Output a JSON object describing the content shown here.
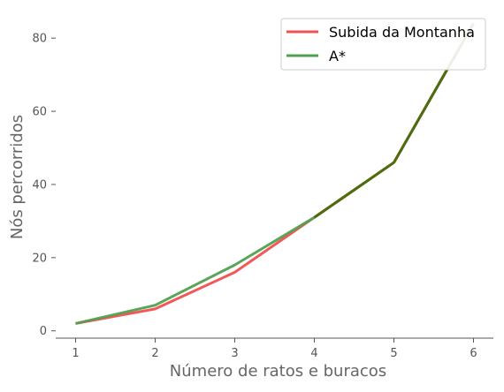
{
  "chart_data": {
    "type": "line",
    "title": "",
    "xlabel": "Número de ratos e buracos",
    "ylabel": "Nós percorridos",
    "xlim": [
      0.75,
      6.25
    ],
    "ylim": [
      -2,
      88
    ],
    "xticks": [
      "1",
      "2",
      "3",
      "4",
      "5",
      "6"
    ],
    "yticks": [
      "0",
      "20",
      "40",
      "60",
      "80"
    ],
    "grid": false,
    "legend_position": "top-right",
    "x": [
      1,
      2,
      3,
      4,
      5,
      6
    ],
    "series": [
      {
        "name": "Subida da Montanha",
        "color": "#f05050",
        "values": [
          2,
          6,
          16,
          31,
          46,
          84
        ]
      },
      {
        "name": "A*",
        "color": "#50a050",
        "values": [
          2,
          7,
          18,
          31,
          46,
          84
        ]
      }
    ],
    "overlap_color": "#4f6b10"
  }
}
